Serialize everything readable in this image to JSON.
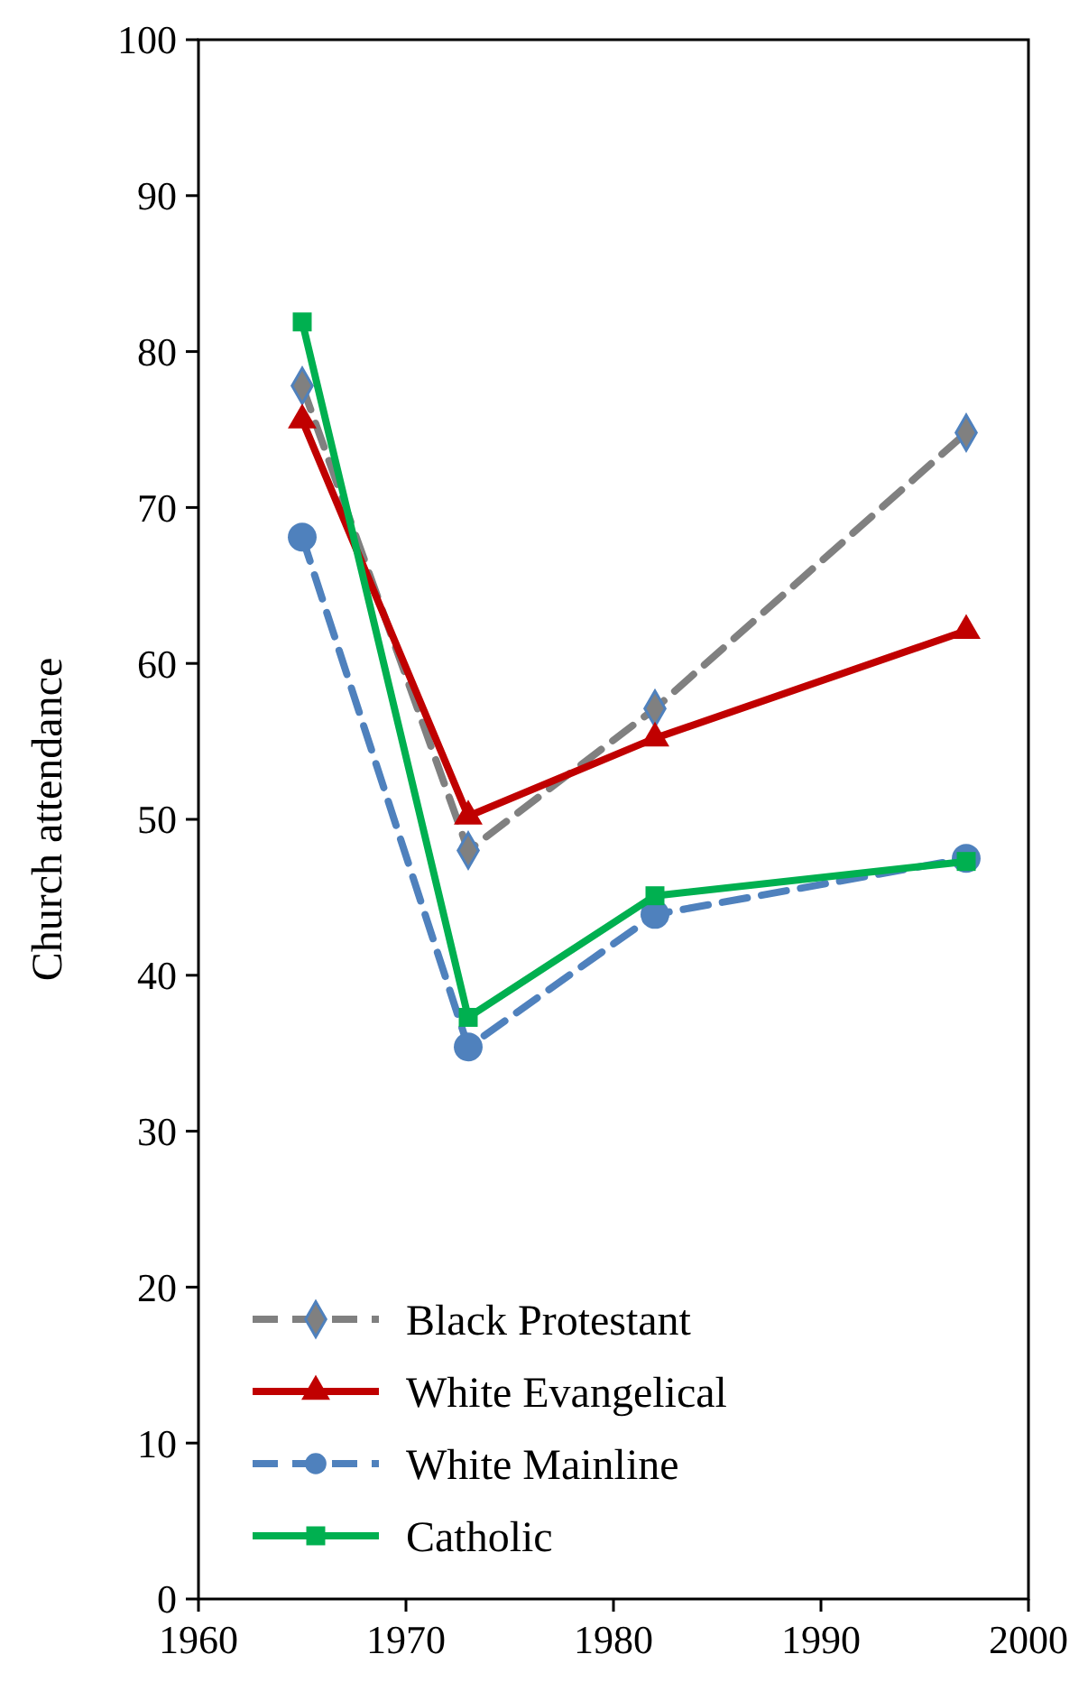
{
  "chart_data": {
    "type": "line",
    "ylabel": "Church attendance",
    "x": [
      1965,
      1973,
      1982,
      1997
    ],
    "xlim": [
      1960,
      2000
    ],
    "xticks": [
      1960,
      1970,
      1980,
      1990,
      2000
    ],
    "ylim": [
      0,
      100
    ],
    "yticks": [
      0,
      10,
      20,
      30,
      40,
      50,
      60,
      70,
      80,
      90,
      100
    ],
    "grid": false,
    "legend": "bottom left",
    "series": [
      {
        "name": "Black Protestant",
        "color": "#808080",
        "values": [
          77.8,
          48.0,
          57.1,
          74.8
        ],
        "marker": "diamond",
        "line_style": "dashed"
      },
      {
        "name": "White Evangelical",
        "color": "#c00000",
        "values": [
          75.6,
          50.2,
          55.2,
          62.1
        ],
        "marker": "triangle",
        "line_style": "solid"
      },
      {
        "name": "White Mainline",
        "color": "#4f81bd",
        "values": [
          68.1,
          35.4,
          43.9,
          47.5
        ],
        "marker": "circle",
        "line_style": "dashed"
      },
      {
        "name": "Catholic",
        "color": "#00b050",
        "values": [
          81.9,
          37.3,
          45.1,
          47.3
        ],
        "marker": "square",
        "line_style": "solid"
      }
    ]
  }
}
